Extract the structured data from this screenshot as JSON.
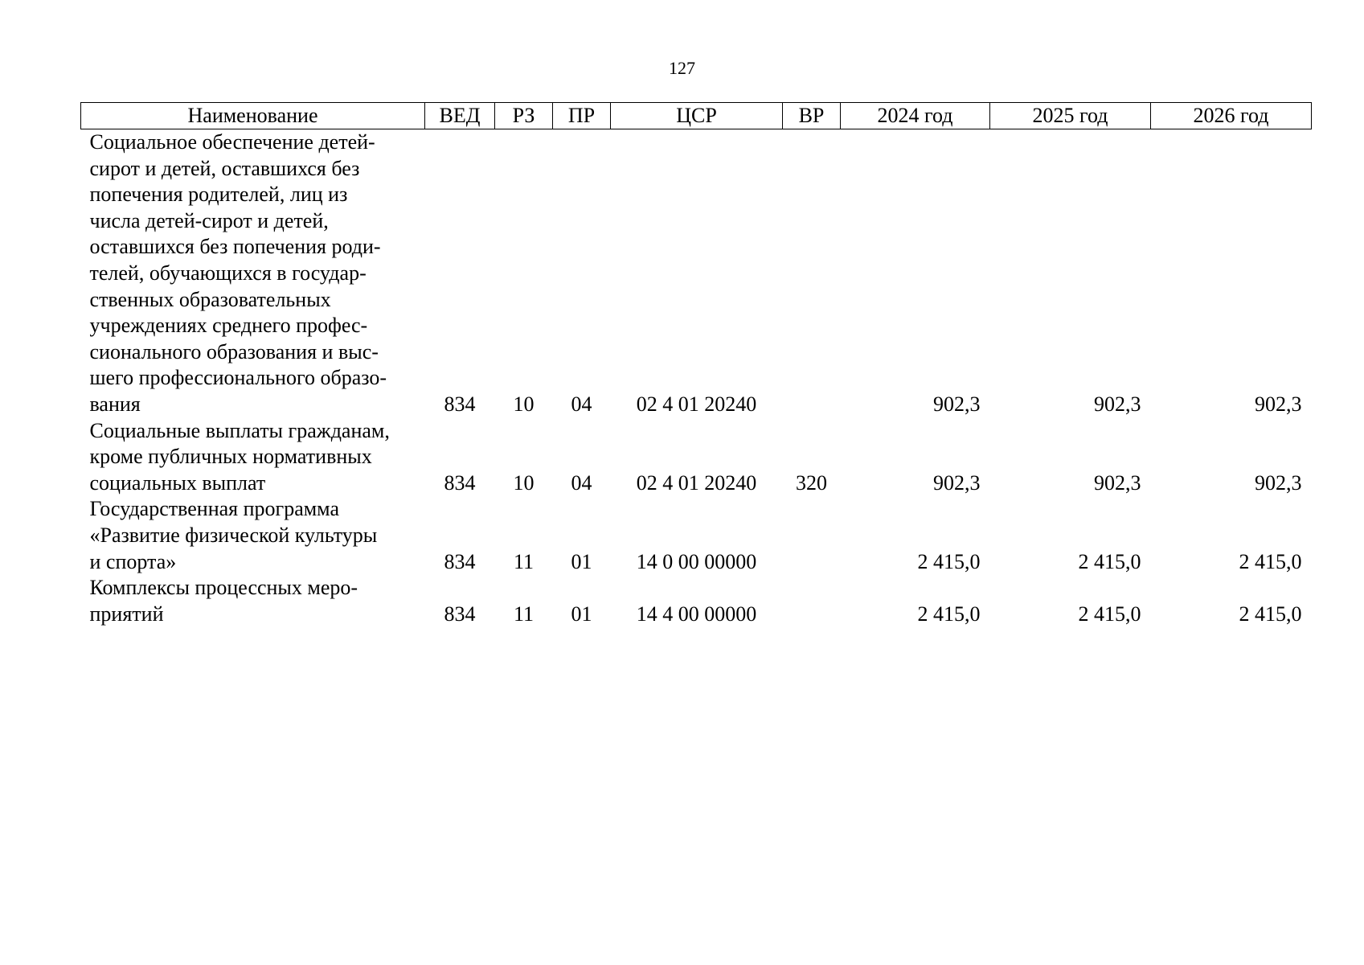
{
  "page_number": "127",
  "table": {
    "headers": {
      "name": "Наименование",
      "ved": "ВЕД",
      "rz": "РЗ",
      "pr": "ПР",
      "csr": "ЦСР",
      "vr": "ВР",
      "y2024": "2024 год",
      "y2025": "2025 год",
      "y2026": "2026 год"
    },
    "rows": [
      {
        "name_lines": [
          "Социальное обеспечение детей-",
          "сирот и детей, оставшихся без",
          "попечения родителей, лиц из",
          "числа детей-сирот и детей,",
          "оставшихся без попечения роди-",
          "телей, обучающихся в государ-",
          "ственных образовательных",
          "учреждениях среднего профес-",
          "сионального образования и выс-",
          "шего профессионального образо-",
          "вания"
        ],
        "ved": "834",
        "rz": "10",
        "pr": "04",
        "csr": "02 4 01 20240",
        "vr": "",
        "y2024": "902,3",
        "y2025": "902,3",
        "y2026": "902,3"
      },
      {
        "name_lines": [
          "Социальные выплаты гражданам,",
          "кроме публичных нормативных",
          "социальных выплат"
        ],
        "ved": "834",
        "rz": "10",
        "pr": "04",
        "csr": "02 4 01 20240",
        "vr": "320",
        "y2024": "902,3",
        "y2025": "902,3",
        "y2026": "902,3"
      },
      {
        "name_lines": [
          "Государственная программа",
          "«Развитие физической культуры",
          "и спорта»"
        ],
        "ved": "834",
        "rz": "11",
        "pr": "01",
        "csr": "14 0 00 00000",
        "vr": "",
        "y2024": "2 415,0",
        "y2025": "2 415,0",
        "y2026": "2 415,0"
      },
      {
        "name_lines": [
          "Комплексы процессных меро-",
          "приятий"
        ],
        "ved": "834",
        "rz": "11",
        "pr": "01",
        "csr": "14 4 00 00000",
        "vr": "",
        "y2024": "2 415,0",
        "y2025": "2 415,0",
        "y2026": "2 415,0"
      }
    ]
  }
}
